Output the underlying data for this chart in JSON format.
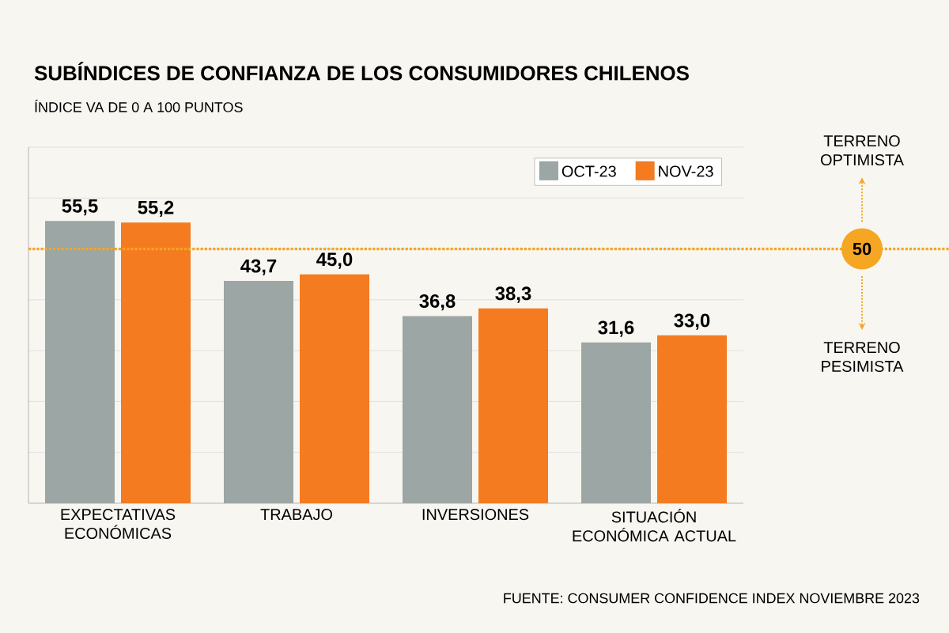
{
  "chart_data": {
    "type": "bar",
    "title": "SUBÍNDICES DE CONFIANZA DE LOS CONSUMIDORES CHILENOS",
    "subtitle": "ÍNDICE VA DE 0 A 100 PUNTOS",
    "categories": [
      "EXPECTATIVAS ECONÓMICAS",
      "TRABAJO",
      "INVERSIONES",
      "SITUACIÓN ECONÓMICA ACTUAL"
    ],
    "series": [
      {
        "name": "OCT-23",
        "color": "#9ba6a5",
        "values": [
          55.5,
          43.7,
          36.8,
          31.6
        ],
        "value_labels": [
          "55,5",
          "43,7",
          "36,8",
          "31,6"
        ]
      },
      {
        "name": "NOV-23",
        "color": "#f47b20",
        "values": [
          55.2,
          45.0,
          38.3,
          33.0
        ],
        "value_labels": [
          "55,2",
          "45,0",
          "38,3",
          "33,0"
        ]
      }
    ],
    "ylim": [
      0,
      70
    ],
    "yticks": [
      {
        "value": 10,
        "label": null
      },
      {
        "value": 20,
        "label": null
      },
      {
        "value": 30,
        "label": null
      },
      {
        "value": 40,
        "label": null
      },
      {
        "value": 50,
        "label": null
      },
      {
        "value": 60,
        "label": null
      },
      {
        "value": 70,
        "label": null
      }
    ],
    "grid": "y",
    "legend": "top right",
    "tick_labels": "x",
    "ref_lines": [
      {
        "axis": "y",
        "value": 50,
        "label": "50",
        "color": "#f5a623",
        "line_style": "dotted"
      }
    ],
    "annotations": [
      "TERRENO OPTIMISTA",
      "TERRENO PESIMISTA",
      "FUENTE: CONSUMER CONFIDENCE INDEX NOVIEMBRE 2023"
    ]
  }
}
